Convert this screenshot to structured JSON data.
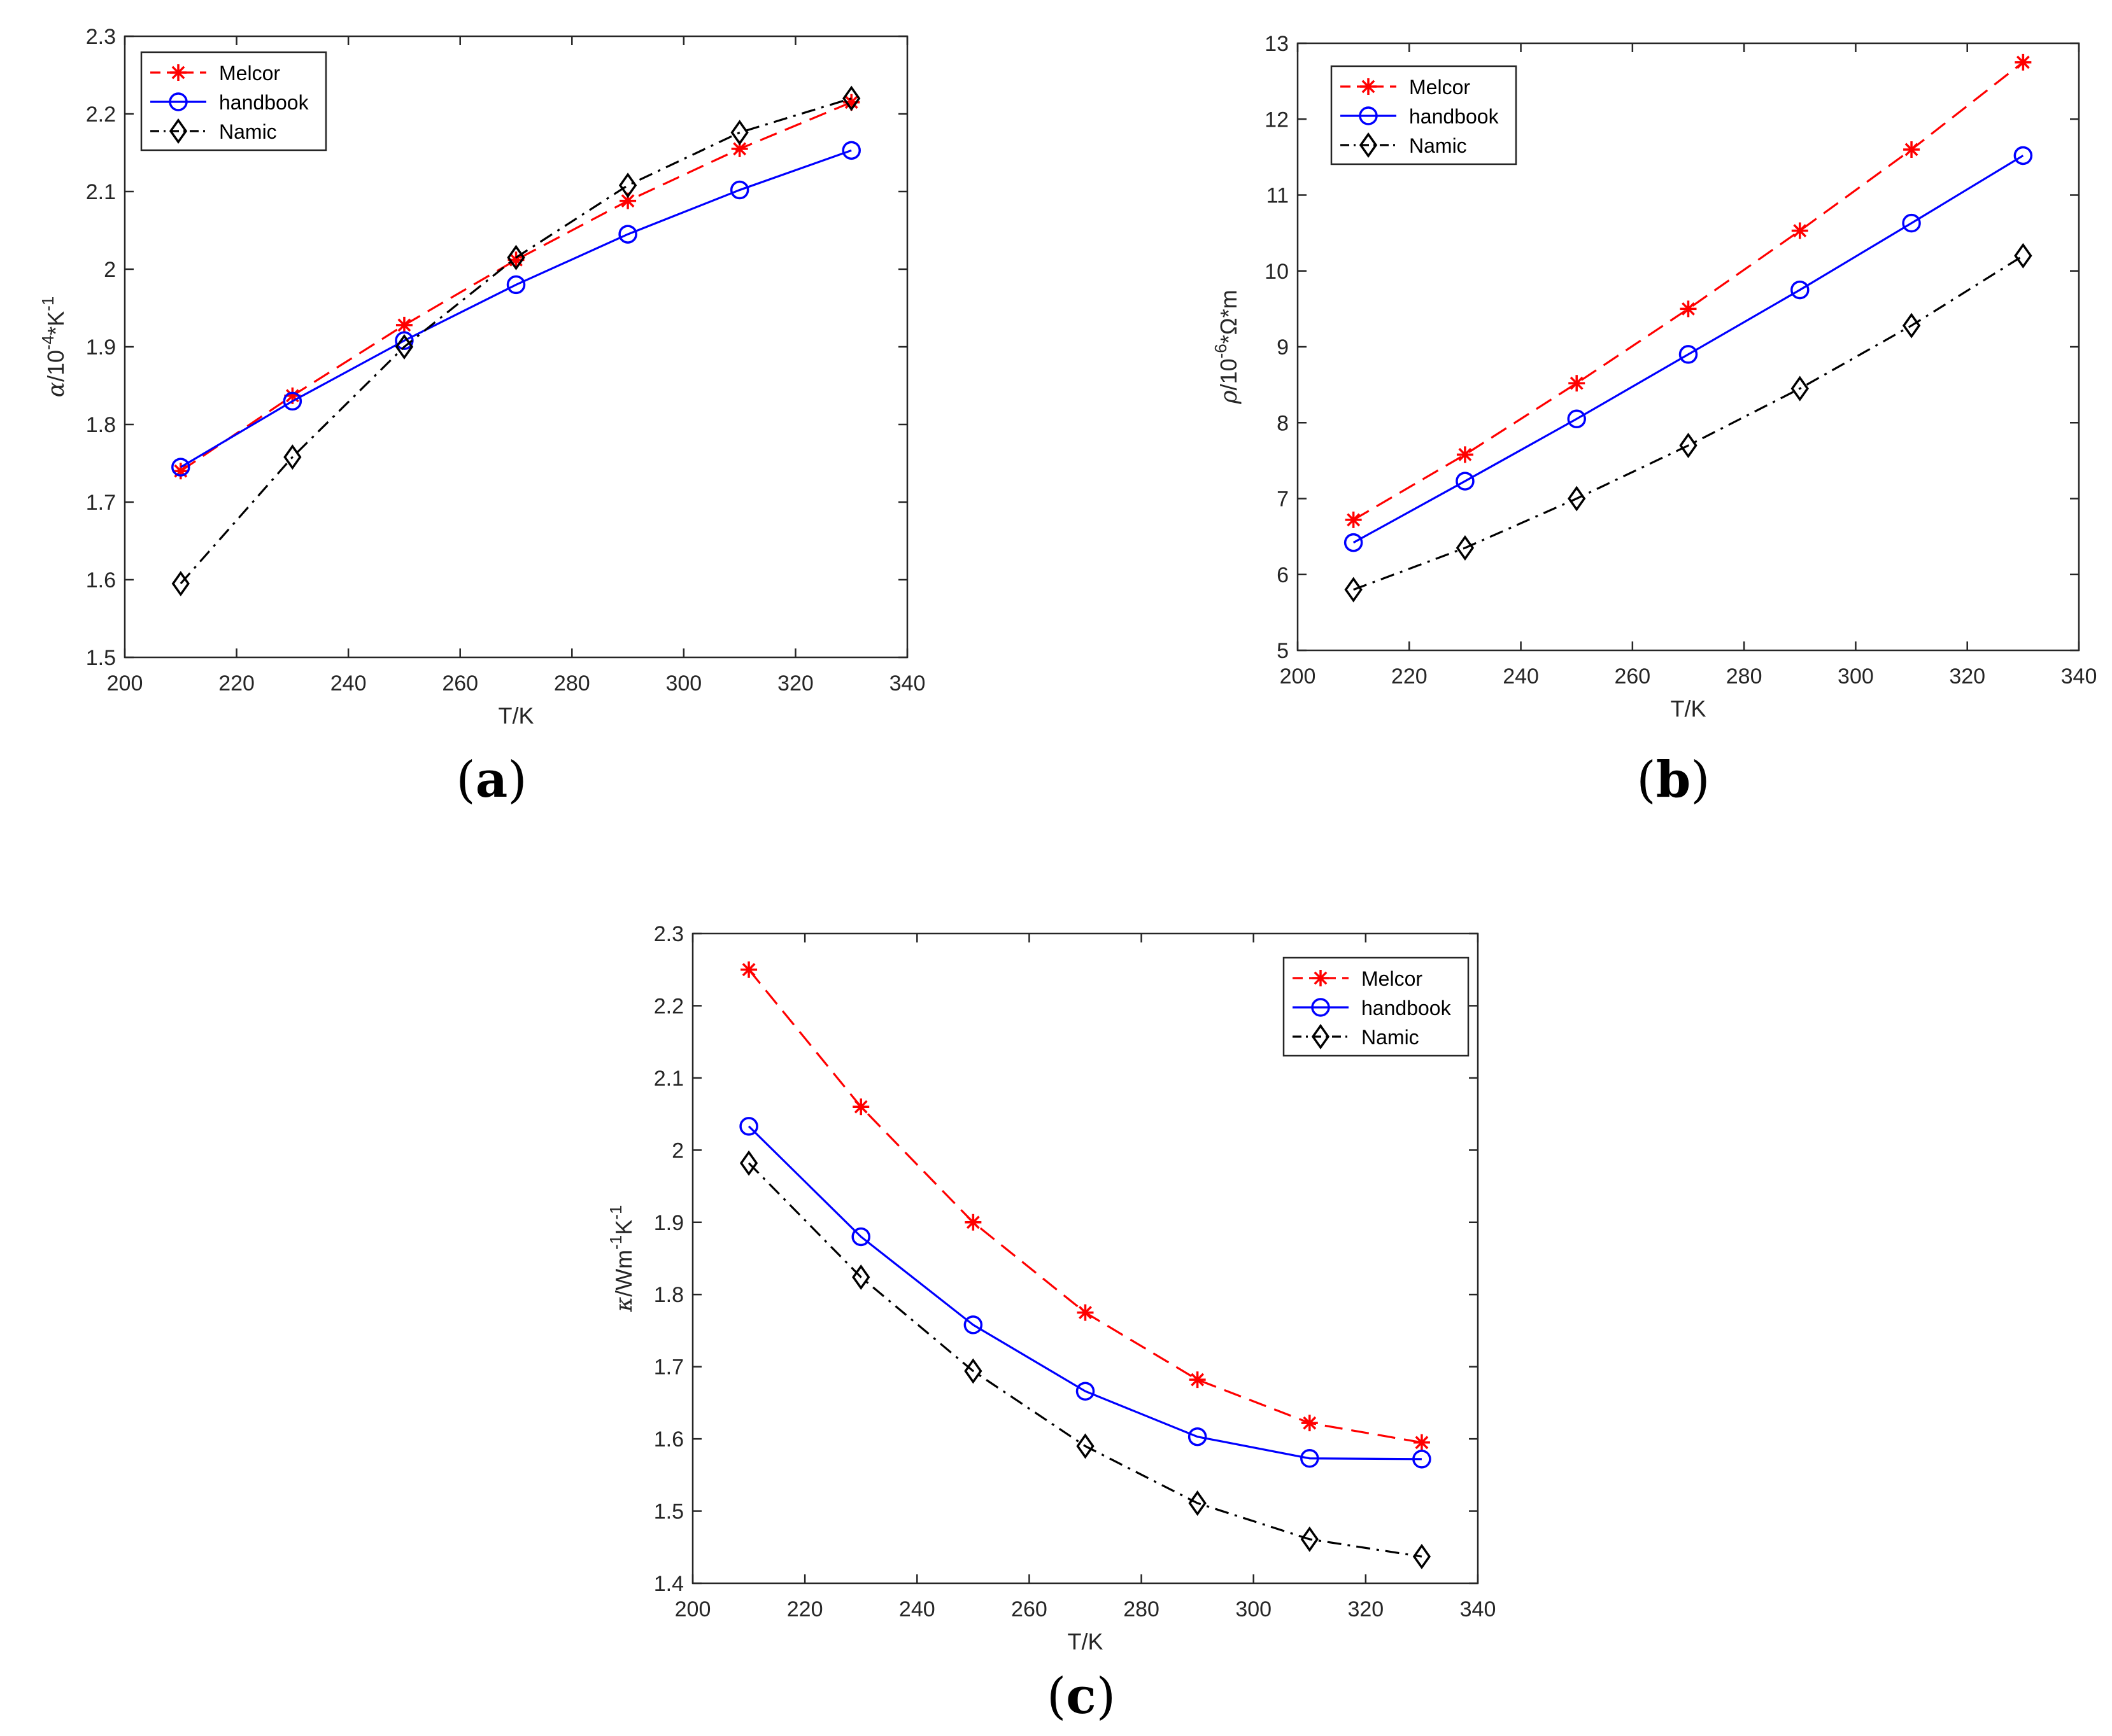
{
  "chart_data": [
    {
      "type": "line",
      "panel_label": "a",
      "title": "",
      "xlabel": "T/K",
      "ylabel_symbol": "α",
      "ylabel_rest": "/10",
      "ylabel_exp": "-4",
      "ylabel_tail": "*K",
      "ylabel_exp2": "-1",
      "xlim": [
        200,
        340
      ],
      "ylim": [
        1.5,
        2.3
      ],
      "xticks": [
        "200",
        "220",
        "240",
        "260",
        "280",
        "300",
        "320",
        "340"
      ],
      "yticks": [
        "1.5",
        "1.6",
        "1.7",
        "1.8",
        "1.9",
        "2",
        "2.1",
        "2.2",
        "2.3"
      ],
      "legend_position": "top-left",
      "x": [
        210,
        230,
        250,
        270,
        290,
        310,
        330
      ],
      "series": [
        {
          "name": "Melcor",
          "values": [
            1.74,
            1.837,
            1.928,
            2.012,
            2.088,
            2.155,
            2.215
          ]
        },
        {
          "name": "handbook",
          "values": [
            1.745,
            1.83,
            1.908,
            1.98,
            2.045,
            2.102,
            2.153
          ]
        },
        {
          "name": "Namic",
          "values": [
            1.595,
            1.758,
            1.9,
            2.015,
            2.108,
            2.176,
            2.22
          ]
        }
      ]
    },
    {
      "type": "line",
      "panel_label": "b",
      "title": "",
      "xlabel": "T/K",
      "ylabel_symbol": "ρ",
      "ylabel_rest": "/10",
      "ylabel_exp": "-6",
      "ylabel_tail": "*Ω*m",
      "ylabel_exp2": "",
      "xlim": [
        200,
        340
      ],
      "ylim": [
        5,
        13
      ],
      "xticks": [
        "200",
        "220",
        "240",
        "260",
        "280",
        "300",
        "320",
        "340"
      ],
      "yticks": [
        "5",
        "6",
        "7",
        "8",
        "9",
        "10",
        "11",
        "12",
        "13"
      ],
      "legend_position": "top-left",
      "x": [
        210,
        230,
        250,
        270,
        290,
        310,
        330
      ],
      "series": [
        {
          "name": "Melcor",
          "values": [
            6.72,
            7.58,
            8.52,
            9.5,
            10.53,
            11.6,
            12.75
          ]
        },
        {
          "name": "handbook",
          "values": [
            6.42,
            7.23,
            8.05,
            8.9,
            9.75,
            10.63,
            11.52
          ]
        },
        {
          "name": "Namic",
          "values": [
            5.8,
            6.35,
            7.0,
            7.7,
            8.45,
            9.28,
            10.2
          ]
        }
      ]
    },
    {
      "type": "line",
      "panel_label": "c",
      "title": "",
      "xlabel": "T/K",
      "ylabel_symbol": "κ",
      "ylabel_rest": "/Wm",
      "ylabel_exp": "-1",
      "ylabel_tail": "K",
      "ylabel_exp2": "-1",
      "xlim": [
        200,
        340
      ],
      "ylim": [
        1.4,
        2.3
      ],
      "xticks": [
        "200",
        "220",
        "240",
        "260",
        "280",
        "300",
        "320",
        "340"
      ],
      "yticks": [
        "1.4",
        "1.5",
        "1.6",
        "1.7",
        "1.8",
        "1.9",
        "2",
        "2.1",
        "2.2",
        "2.3"
      ],
      "legend_position": "top-right",
      "x": [
        210,
        230,
        250,
        270,
        290,
        310,
        330
      ],
      "series": [
        {
          "name": "Melcor",
          "values": [
            2.25,
            2.06,
            1.9,
            1.775,
            1.682,
            1.622,
            1.595
          ]
        },
        {
          "name": "handbook",
          "values": [
            2.033,
            1.88,
            1.758,
            1.666,
            1.603,
            1.573,
            1.572
          ]
        },
        {
          "name": "Namic",
          "values": [
            1.982,
            1.824,
            1.694,
            1.59,
            1.511,
            1.461,
            1.437
          ]
        }
      ]
    }
  ],
  "series_styles": [
    {
      "name": "Melcor",
      "color": "#ff0000",
      "marker": "asterisk",
      "dash": "dashed"
    },
    {
      "name": "handbook",
      "color": "#0000ff",
      "marker": "circle",
      "dash": "solid"
    },
    {
      "name": "Namic",
      "color": "#000000",
      "marker": "diamond",
      "dash": "dashdot"
    }
  ]
}
